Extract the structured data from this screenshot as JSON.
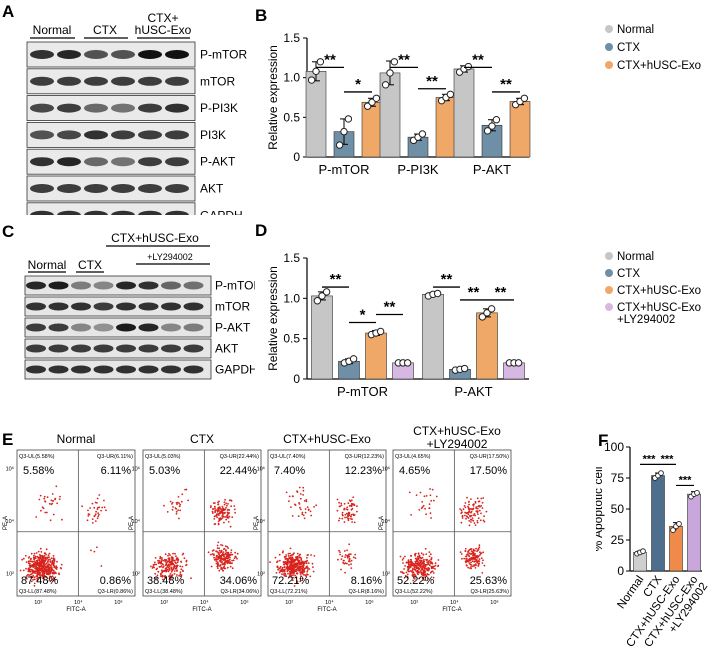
{
  "panels": {
    "a": "A",
    "b": "B",
    "c": "C",
    "d": "D",
    "e": "E",
    "f": "F"
  },
  "colors": {
    "normal": "#c6c6c6",
    "ctx": "#6f8fa6",
    "hexo": "#f0a868",
    "ly": "#d7b8e2",
    "f_normal": "#cfcfcf",
    "f_ctx": "#4e6e8e",
    "f_hexo": "#f08a4b",
    "f_ly": "#c9a6dc",
    "dot": "#d8241e"
  },
  "blot_a": {
    "groups": [
      "Normal",
      "CTX",
      "CTX+\nhUSC-Exo"
    ],
    "bands": [
      "P-mTOR",
      "mTOR",
      "P-PI3K",
      "PI3K",
      "P-AKT",
      "AKT",
      "GAPDH"
    ]
  },
  "blot_c": {
    "groups": [
      "Normal",
      "CTX",
      "CTX+hUSC-Exo",
      "+LY294002"
    ],
    "bands": [
      "P-mTOR",
      "mTOR",
      "P-AKT",
      "AKT",
      "GAPDH"
    ]
  },
  "chart_data": [
    {
      "type": "bar",
      "panel": "B",
      "ylabel": "Relative expression",
      "ylim": [
        0,
        1.5
      ],
      "yticks": [
        0,
        0.5,
        1.0,
        1.5
      ],
      "categories": [
        "P-mTOR",
        "P-PI3K",
        "P-AKT"
      ],
      "series": [
        {
          "name": "Normal",
          "values": [
            1.08,
            1.06,
            1.11
          ],
          "err": [
            0.12,
            0.15,
            0.04
          ],
          "points": [
            [
              0.97,
              1.08,
              1.2
            ],
            [
              0.91,
              1.06,
              1.2
            ],
            [
              1.07,
              1.11,
              1.14
            ]
          ]
        },
        {
          "name": "CTX",
          "values": [
            0.32,
            0.25,
            0.4
          ],
          "err": [
            0.16,
            0.04,
            0.07
          ],
          "points": [
            [
              0.15,
              0.32,
              0.48
            ],
            [
              0.21,
              0.25,
              0.29
            ],
            [
              0.33,
              0.39,
              0.47
            ]
          ]
        },
        {
          "name": "CTX+hUSC-Exo",
          "values": [
            0.69,
            0.75,
            0.7
          ],
          "err": [
            0.05,
            0.04,
            0.04
          ],
          "points": [
            [
              0.64,
              0.69,
              0.74
            ],
            [
              0.71,
              0.75,
              0.79
            ],
            [
              0.66,
              0.7,
              0.74
            ]
          ]
        }
      ],
      "significance": [
        {
          "label": "**",
          "group": 0,
          "from": 0,
          "to": 1,
          "y": 1.13
        },
        {
          "label": "*",
          "group": 0,
          "from": 1,
          "to": 2,
          "y": 0.82
        },
        {
          "label": "**",
          "group": 1,
          "from": 0,
          "to": 1,
          "y": 1.13
        },
        {
          "label": "**",
          "group": 1,
          "from": 1,
          "to": 2,
          "y": 0.86
        },
        {
          "label": "**",
          "group": 2,
          "from": 0,
          "to": 1,
          "y": 1.13
        },
        {
          "label": "**",
          "group": 2,
          "from": 1,
          "to": 2,
          "y": 0.82
        }
      ],
      "legend": {
        "position": "right",
        "entries": [
          "Normal",
          "CTX",
          "CTX+hUSC-Exo"
        ]
      }
    },
    {
      "type": "bar",
      "panel": "D",
      "ylabel": "Relative expression",
      "ylim": [
        0,
        1.5
      ],
      "yticks": [
        0,
        0.5,
        1.0,
        1.5
      ],
      "categories": [
        "P-mTOR",
        "P-AKT"
      ],
      "series": [
        {
          "name": "Normal",
          "values": [
            1.03,
            1.05
          ],
          "err": [
            0.05,
            0.02
          ],
          "points": [
            [
              0.97,
              1.03,
              1.08
            ],
            [
              1.03,
              1.05,
              1.06
            ]
          ]
        },
        {
          "name": "CTX",
          "values": [
            0.22,
            0.12
          ],
          "err": [
            0.03,
            0.01
          ],
          "points": [
            [
              0.2,
              0.22,
              0.25
            ],
            [
              0.11,
              0.12,
              0.13
            ]
          ]
        },
        {
          "name": "CTX+hUSC-Exo",
          "values": [
            0.57,
            0.82
          ],
          "err": [
            0.03,
            0.05
          ],
          "points": [
            [
              0.55,
              0.57,
              0.59
            ],
            [
              0.77,
              0.82,
              0.87
            ]
          ]
        },
        {
          "name": "CTX+hUSC-Exo\n+LY294002",
          "values": [
            0.2,
            0.2
          ],
          "err": [
            0.01,
            0.01
          ],
          "points": [
            [
              0.2,
              0.2,
              0.2
            ],
            [
              0.2,
              0.2,
              0.2
            ]
          ]
        }
      ],
      "significance": [
        {
          "label": "**",
          "group": 0,
          "from": 0,
          "to": 1,
          "y": 1.14
        },
        {
          "label": "*",
          "group": 0,
          "from": 1,
          "to": 2,
          "y": 0.7
        },
        {
          "label": "**",
          "group": 0,
          "from": 2,
          "to": 3,
          "y": 0.8
        },
        {
          "label": "**",
          "group": 1,
          "from": 0,
          "to": 1,
          "y": 1.14
        },
        {
          "label": "**",
          "group": 1,
          "from": 1,
          "to": 2,
          "y": 0.98
        },
        {
          "label": "**",
          "group": 1,
          "from": 2,
          "to": 3,
          "y": 0.98
        }
      ],
      "legend": {
        "position": "right",
        "entries": [
          "Normal",
          "CTX",
          "CTX+hUSC-Exo",
          "CTX+hUSC-Exo\n+LY294002"
        ]
      }
    },
    {
      "type": "bar",
      "panel": "F",
      "ylabel": "% Apoptotic cell",
      "ylim": [
        0,
        100
      ],
      "yticks": [
        0,
        25,
        50,
        75,
        100
      ],
      "categories": [
        "Normal",
        "CTX",
        "CTX+hUSC-Exo",
        "CTX+hUSC-Exo\n+LY294002"
      ],
      "values": [
        15,
        77,
        36,
        62
      ],
      "err": [
        1,
        2,
        3,
        2
      ],
      "points": [
        [
          14,
          15,
          16
        ],
        [
          75,
          77,
          79
        ],
        [
          33,
          36,
          38
        ],
        [
          60,
          62,
          63
        ]
      ],
      "significance": [
        {
          "label": "***",
          "from": 0,
          "to": 1,
          "y": 86
        },
        {
          "label": "***",
          "from": 1,
          "to": 2,
          "y": 86
        },
        {
          "label": "***",
          "from": 2,
          "to": 3,
          "y": 69
        }
      ]
    },
    {
      "type": "scatter",
      "panel": "E",
      "xaxis": "FITC-A",
      "yaxis": "PE-A",
      "tick_labels": [
        "10²",
        "10⁴",
        "10⁶"
      ],
      "plots": [
        {
          "title": "Normal",
          "ul": "5.58%",
          "ur": "6.11%",
          "ll": "87.48%",
          "lr": "0.86%",
          "ul_s": "Q3-UL(5.58%)",
          "ur_s": "Q3-UR(6.11%)",
          "ll_s": "Q3-LL(87.48%)",
          "lr_s": "Q3-LR(0.86%)",
          "fractions": [
            0.0558,
            0.0611,
            0.8748,
            0.0086
          ]
        },
        {
          "title": "CTX",
          "ul": "5.03%",
          "ur": "22.44%",
          "ll": "38.48%",
          "lr": "34.06%",
          "ul_s": "Q3-UL(5.03%)",
          "ur_s": "Q3-UR(22.44%)",
          "ll_s": "Q3-LL(38.48%)",
          "lr_s": "Q3-LR(34.06%)",
          "fractions": [
            0.0503,
            0.2244,
            0.3848,
            0.3406
          ]
        },
        {
          "title": "CTX+hUSC-Exo",
          "ul": "7.40%",
          "ur": "12.23%",
          "ll": "72.21%",
          "lr": "8.16%",
          "ul_s": "Q3-UL(7.40%)",
          "ur_s": "Q3-UR(12.23%)",
          "ll_s": "Q3-LL(72.21%)",
          "lr_s": "Q3-LR(8.16%)",
          "fractions": [
            0.074,
            0.1223,
            0.7221,
            0.0816
          ]
        },
        {
          "title": "CTX+hUSC-Exo\n+LY294002",
          "ul": "4.65%",
          "ur": "17.50%",
          "ll": "52.22%",
          "lr": "25.63%",
          "ul_s": "Q3-UL(4.65%)",
          "ur_s": "Q3-UR(17.50%)",
          "ll_s": "Q3-LL(52.22%)",
          "lr_s": "Q3-LR(25.63%)",
          "fractions": [
            0.0465,
            0.175,
            0.5222,
            0.2563
          ]
        }
      ]
    }
  ]
}
